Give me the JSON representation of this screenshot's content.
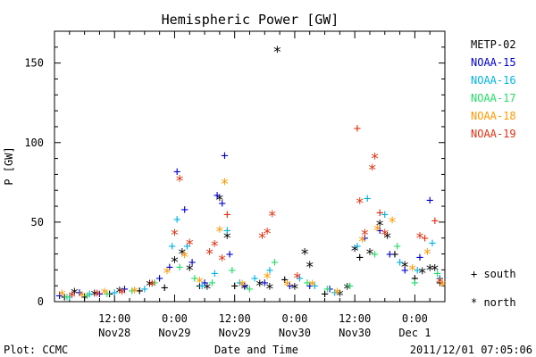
{
  "chart_data": {
    "type": "scatter",
    "title": "Hemispheric Power [GW]",
    "xlabel": "Date and Time",
    "ylabel": "P [GW]",
    "xlim": [
      "2011-11-28 00:00",
      "2011-12-01 06:00"
    ],
    "ylim": [
      0,
      170
    ],
    "y_ticks": [
      0,
      50,
      100,
      150
    ],
    "x_ticks": [
      {
        "t": "2011-11-28 12:00",
        "line1": "12:00",
        "line2": "Nov28"
      },
      {
        "t": "2011-11-29 00:00",
        "line1": "0:00",
        "line2": "Nov29"
      },
      {
        "t": "2011-11-29 12:00",
        "line1": "12:00",
        "line2": "Nov29"
      },
      {
        "t": "2011-11-30 00:00",
        "line1": "0:00",
        "line2": "Nov30"
      },
      {
        "t": "2011-11-30 12:00",
        "line1": "12:00",
        "line2": "Nov30"
      },
      {
        "t": "2011-12-01 00:00",
        "line1": "0:00",
        "line2": "Dec 1"
      }
    ],
    "grid": false,
    "legend_position": "right",
    "marker_legend": [
      {
        "symbol": "+",
        "label": "south"
      },
      {
        "symbol": "*",
        "label": "north"
      }
    ],
    "series": [
      {
        "name": "METP-02",
        "color": "#000000",
        "points": [
          [
            "2011-11-28 02:00",
            3,
            "+"
          ],
          [
            "2011-11-28 04:00",
            5,
            "*"
          ],
          [
            "2011-11-28 06:00",
            3,
            "+"
          ],
          [
            "2011-11-28 08:00",
            4,
            "*"
          ],
          [
            "2011-11-28 11:00",
            5,
            "+"
          ],
          [
            "2011-11-28 13:00",
            6,
            "*"
          ],
          [
            "2011-11-28 17:00",
            7,
            "+"
          ],
          [
            "2011-11-28 19:00",
            10,
            "*"
          ],
          [
            "2011-11-28 22:00",
            9,
            "+"
          ],
          [
            "2011-11-29 00:00",
            25,
            "*"
          ],
          [
            "2011-11-29 01:30",
            30,
            "*"
          ],
          [
            "2011-11-29 03:00",
            20,
            "*"
          ],
          [
            "2011-11-29 05:00",
            10,
            "+"
          ],
          [
            "2011-11-29 06:30",
            8,
            "*"
          ],
          [
            "2011-11-29 09:00",
            64,
            "*"
          ],
          [
            "2011-11-29 10:30",
            40,
            "*"
          ],
          [
            "2011-11-29 12:00",
            10,
            "+"
          ],
          [
            "2011-11-29 14:00",
            8,
            "*"
          ],
          [
            "2011-11-29 17:00",
            10,
            "*"
          ],
          [
            "2011-11-29 19:00",
            8,
            "*"
          ],
          [
            "2011-11-29 20:30",
            157,
            "*"
          ],
          [
            "2011-11-29 22:00",
            14,
            "+"
          ],
          [
            "2011-11-30 00:00",
            8,
            "*"
          ],
          [
            "2011-11-30 02:00",
            30,
            "*"
          ],
          [
            "2011-11-30 03:00",
            22,
            "*"
          ],
          [
            "2011-11-30 06:00",
            5,
            "+"
          ],
          [
            "2011-11-30 09:00",
            4,
            "*"
          ],
          [
            "2011-11-30 10:30",
            8,
            "*"
          ],
          [
            "2011-11-30 12:00",
            32,
            "*"
          ],
          [
            "2011-11-30 13:00",
            28,
            "+"
          ],
          [
            "2011-11-30 15:00",
            30,
            "*"
          ],
          [
            "2011-11-30 17:00",
            48,
            "*"
          ],
          [
            "2011-11-30 18:30",
            40,
            "*"
          ],
          [
            "2011-11-30 20:00",
            30,
            "+"
          ],
          [
            "2011-11-30 22:00",
            22,
            "*"
          ],
          [
            "2011-12-01 00:00",
            15,
            "+"
          ],
          [
            "2011-12-01 01:30",
            18,
            "*"
          ],
          [
            "2011-12-01 03:00",
            20,
            "*"
          ],
          [
            "2011-12-01 04:00",
            20,
            "*"
          ],
          [
            "2011-12-01 05:00",
            12,
            "+"
          ]
        ]
      },
      {
        "name": "NOAA-15",
        "color": "#0000d0",
        "points": [
          [
            "2011-11-28 01:00",
            4,
            "+"
          ],
          [
            "2011-11-28 05:00",
            6,
            "+"
          ],
          [
            "2011-11-28 09:00",
            5,
            "+"
          ],
          [
            "2011-11-28 14:00",
            8,
            "+"
          ],
          [
            "2011-11-28 21:00",
            15,
            "+"
          ],
          [
            "2011-11-28 23:00",
            22,
            "+"
          ],
          [
            "2011-11-29 00:30",
            82,
            "+"
          ],
          [
            "2011-11-29 02:00",
            58,
            "+"
          ],
          [
            "2011-11-29 03:30",
            25,
            "+"
          ],
          [
            "2011-11-29 06:00",
            12,
            "+"
          ],
          [
            "2011-11-29 08:30",
            67,
            "+"
          ],
          [
            "2011-11-29 09:30",
            62,
            "+"
          ],
          [
            "2011-11-29 10:00",
            92,
            "+"
          ],
          [
            "2011-11-29 11:00",
            30,
            "+"
          ],
          [
            "2011-11-29 14:00",
            10,
            "+"
          ],
          [
            "2011-11-29 18:00",
            12,
            "+"
          ],
          [
            "2011-11-29 23:00",
            10,
            "+"
          ],
          [
            "2011-11-30 03:00",
            10,
            "+"
          ],
          [
            "2011-11-30 07:00",
            8,
            "+"
          ],
          [
            "2011-11-30 14:00",
            40,
            "+"
          ],
          [
            "2011-11-30 17:00",
            45,
            "+"
          ],
          [
            "2011-11-30 19:00",
            30,
            "+"
          ],
          [
            "2011-11-30 22:00",
            20,
            "+"
          ],
          [
            "2011-12-01 01:00",
            28,
            "+"
          ],
          [
            "2011-12-01 03:00",
            64,
            "+"
          ],
          [
            "2011-12-01 05:00",
            15,
            "+"
          ]
        ]
      },
      {
        "name": "NOAA-16",
        "color": "#00b4e6",
        "points": [
          [
            "2011-11-28 03:00",
            3,
            "+"
          ],
          [
            "2011-11-28 07:00",
            5,
            "+"
          ],
          [
            "2011-11-28 12:00",
            6,
            "+"
          ],
          [
            "2011-11-28 18:00",
            8,
            "+"
          ],
          [
            "2011-11-28 23:30",
            35,
            "+"
          ],
          [
            "2011-11-29 00:30",
            52,
            "+"
          ],
          [
            "2011-11-29 02:30",
            35,
            "+"
          ],
          [
            "2011-11-29 05:30",
            10,
            "+"
          ],
          [
            "2011-11-29 08:00",
            18,
            "+"
          ],
          [
            "2011-11-29 10:30",
            45,
            "+"
          ],
          [
            "2011-11-29 13:00",
            12,
            "+"
          ],
          [
            "2011-11-29 16:00",
            15,
            "+"
          ],
          [
            "2011-11-29 19:00",
            20,
            "+"
          ],
          [
            "2011-11-30 01:00",
            15,
            "+"
          ],
          [
            "2011-11-30 04:00",
            10,
            "+"
          ],
          [
            "2011-11-30 08:00",
            6,
            "+"
          ],
          [
            "2011-11-30 12:30",
            35,
            "+"
          ],
          [
            "2011-11-30 14:30",
            65,
            "+"
          ],
          [
            "2011-11-30 18:00",
            55,
            "+"
          ],
          [
            "2011-11-30 21:00",
            25,
            "+"
          ],
          [
            "2011-12-01 00:30",
            20,
            "+"
          ],
          [
            "2011-12-01 03:30",
            37,
            "+"
          ],
          [
            "2011-12-01 05:00",
            15,
            "+"
          ]
        ]
      },
      {
        "name": "NOAA-17",
        "color": "#22dd66",
        "points": [
          [
            "2011-11-28 02:30",
            3,
            "+"
          ],
          [
            "2011-11-28 06:30",
            4,
            "+"
          ],
          [
            "2011-11-28 10:30",
            5,
            "+"
          ],
          [
            "2011-11-28 15:30",
            7,
            "+"
          ],
          [
            "2011-11-28 20:00",
            12,
            "+"
          ],
          [
            "2011-11-29 01:00",
            22,
            "+"
          ],
          [
            "2011-11-29 04:00",
            15,
            "+"
          ],
          [
            "2011-11-29 07:30",
            12,
            "+"
          ],
          [
            "2011-11-29 11:30",
            20,
            "+"
          ],
          [
            "2011-11-29 15:00",
            8,
            "+"
          ],
          [
            "2011-11-29 20:00",
            25,
            "+"
          ],
          [
            "2011-11-30 02:30",
            12,
            "+"
          ],
          [
            "2011-11-30 06:30",
            8,
            "+"
          ],
          [
            "2011-11-30 11:00",
            10,
            "+"
          ],
          [
            "2011-11-30 16:00",
            30,
            "+"
          ],
          [
            "2011-11-30 20:30",
            35,
            "+"
          ],
          [
            "2011-12-01 00:00",
            12,
            "+"
          ],
          [
            "2011-12-01 04:30",
            18,
            "+"
          ]
        ]
      },
      {
        "name": "NOAA-18",
        "color": "#ff9900",
        "points": [
          [
            "2011-11-28 01:30",
            4,
            "*"
          ],
          [
            "2011-11-28 05:30",
            3,
            "*"
          ],
          [
            "2011-11-28 10:00",
            5,
            "*"
          ],
          [
            "2011-11-28 16:00",
            6,
            "*"
          ],
          [
            "2011-11-28 22:30",
            18,
            "*"
          ],
          [
            "2011-11-29 02:00",
            28,
            "*"
          ],
          [
            "2011-11-29 05:00",
            12,
            "*"
          ],
          [
            "2011-11-29 09:00",
            44,
            "*"
          ],
          [
            "2011-11-29 10:00",
            74,
            "*"
          ],
          [
            "2011-11-29 13:30",
            10,
            "*"
          ],
          [
            "2011-11-29 18:30",
            15,
            "*"
          ],
          [
            "2011-11-29 22:30",
            10,
            "*"
          ],
          [
            "2011-11-30 03:30",
            10,
            "*"
          ],
          [
            "2011-11-30 08:30",
            5,
            "*"
          ],
          [
            "2011-11-30 13:30",
            38,
            "*"
          ],
          [
            "2011-11-30 16:30",
            45,
            "*"
          ],
          [
            "2011-11-30 19:30",
            50,
            "*"
          ],
          [
            "2011-11-30 23:30",
            20,
            "*"
          ],
          [
            "2011-12-01 02:30",
            30,
            "*"
          ],
          [
            "2011-12-01 05:30",
            10,
            "*"
          ]
        ]
      },
      {
        "name": "NOAA-19",
        "color": "#e03010",
        "points": [
          [
            "2011-11-28 03:30",
            3,
            "*"
          ],
          [
            "2011-11-28 08:30",
            4,
            "*"
          ],
          [
            "2011-11-28 13:30",
            5,
            "*"
          ],
          [
            "2011-11-28 19:30",
            10,
            "*"
          ],
          [
            "2011-11-29 00:00",
            42,
            "*"
          ],
          [
            "2011-11-29 01:00",
            76,
            "*"
          ],
          [
            "2011-11-29 03:00",
            36,
            "*"
          ],
          [
            "2011-11-29 07:00",
            30,
            "*"
          ],
          [
            "2011-11-29 08:00",
            35,
            "*"
          ],
          [
            "2011-11-29 09:30",
            26,
            "*"
          ],
          [
            "2011-11-29 10:30",
            55,
            "+"
          ],
          [
            "2011-11-29 17:30",
            40,
            "*"
          ],
          [
            "2011-11-29 18:30",
            43,
            "*"
          ],
          [
            "2011-11-29 19:30",
            54,
            "*"
          ],
          [
            "2011-11-30 00:30",
            15,
            "*"
          ],
          [
            "2011-11-30 12:30",
            109,
            "+"
          ],
          [
            "2011-11-30 13:00",
            62,
            "*"
          ],
          [
            "2011-11-30 14:00",
            42,
            "*"
          ],
          [
            "2011-11-30 15:30",
            83,
            "*"
          ],
          [
            "2011-11-30 16:00",
            90,
            "*"
          ],
          [
            "2011-11-30 17:00",
            56,
            "+"
          ],
          [
            "2011-11-30 18:00",
            42,
            "*"
          ],
          [
            "2011-12-01 01:00",
            40,
            "*"
          ],
          [
            "2011-12-01 02:00",
            40,
            "+"
          ],
          [
            "2011-12-01 04:00",
            51,
            "+"
          ],
          [
            "2011-12-01 05:00",
            12,
            "*"
          ]
        ]
      }
    ]
  },
  "footer": {
    "left": "Plot: CCMC",
    "right": "2011/12/01 07:05:06"
  }
}
